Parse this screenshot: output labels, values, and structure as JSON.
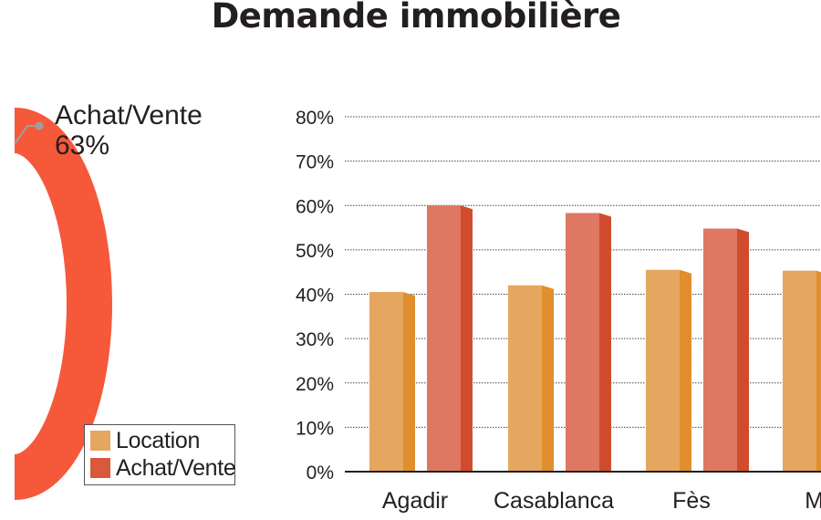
{
  "title": "Demande immobilière",
  "colors": {
    "location_front": "#e5a75f",
    "location_side": "#e08e2e",
    "achat_front": "#de7862",
    "achat_side": "#d04c2c",
    "donut": "#f6583a",
    "leader": "#9e9e9e",
    "grid": "#444444",
    "axis": "#231f20"
  },
  "legend": {
    "items": [
      {
        "label": "Location",
        "color": "#e5a75f"
      },
      {
        "label": "Achat/Vente",
        "color": "#d85a3a"
      }
    ]
  },
  "chart_data": [
    {
      "type": "pie",
      "donut": true,
      "visible_label": {
        "name": "Achat/Vente",
        "value": "63%"
      },
      "slices": [
        {
          "name": "Achat/Vente",
          "value": 63
        }
      ]
    },
    {
      "type": "bar",
      "categories": [
        "Agadir",
        "Casablanca",
        "Fès",
        "Marr"
      ],
      "series": [
        {
          "name": "Location",
          "values": [
            40.5,
            42,
            45.5,
            45.3
          ]
        },
        {
          "name": "Achat/Vente",
          "values": [
            60,
            58.3,
            54.8,
            null
          ]
        }
      ],
      "yticks": [
        "0%",
        "10%",
        "20%",
        "30%",
        "40%",
        "50%",
        "60%",
        "70%",
        "80%"
      ],
      "ylim": [
        0,
        80
      ],
      "grid": true,
      "legend_position": "left"
    }
  ]
}
